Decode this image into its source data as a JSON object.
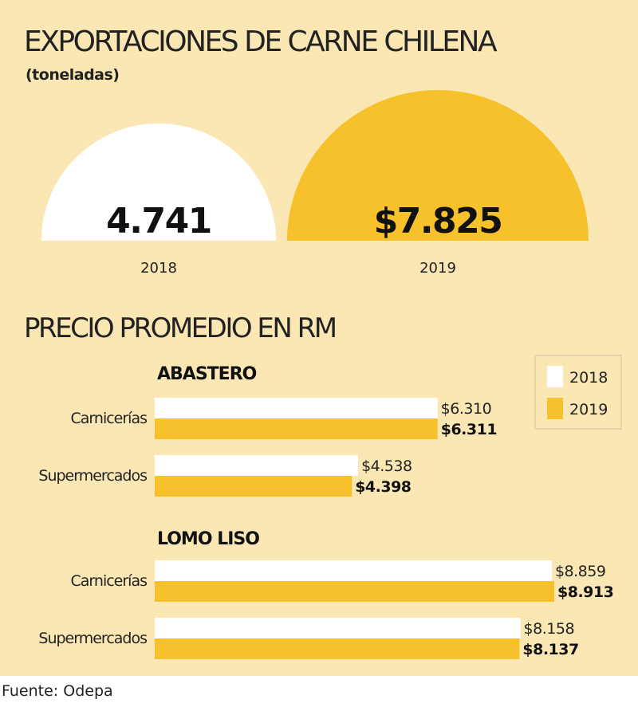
{
  "title": "EXPORTACIONES DE CARNE CHILENA",
  "subtitle": "(toneladas)",
  "section_title": "PRECIO PROMEDIO EN RM",
  "source": "Fuente: Odepa",
  "colors": {
    "background": "#fbe7b4",
    "series_2018": "#ffffff",
    "series_2019": "#f6c12a",
    "text": "#222222"
  },
  "chart_data": [
    {
      "type": "semicircle",
      "title": "EXPORTACIONES DE CARNE CHILENA",
      "subtitle": "(toneladas)",
      "categories": [
        "2018",
        "2019"
      ],
      "values": [
        4741,
        7825
      ],
      "value_labels": [
        "4.741",
        "$7.825"
      ]
    },
    {
      "type": "bar",
      "orientation": "horizontal",
      "title": "PRECIO PROMEDIO EN RM",
      "legend": {
        "position": "top-right",
        "entries": [
          "2018",
          "2019"
        ]
      },
      "series": [
        {
          "name": "2018"
        },
        {
          "name": "2019"
        }
      ],
      "groups": [
        {
          "name": "ABASTERO",
          "categories": [
            "Carnicerías",
            "Supermercados"
          ],
          "values_2018": [
            6310,
            4538
          ],
          "values_2019": [
            6311,
            4398
          ],
          "labels_2018": [
            "$6.310",
            "$4.538"
          ],
          "labels_2019": [
            "$6.311",
            "$4.398"
          ]
        },
        {
          "name": "LOMO LISO",
          "categories": [
            "Carnicerías",
            "Supermercados"
          ],
          "values_2018": [
            8859,
            8158
          ],
          "values_2019": [
            8913,
            8137
          ],
          "labels_2018": [
            "$8.859",
            "$8.158"
          ],
          "labels_2019": [
            "$8.913",
            "$8.137"
          ]
        }
      ],
      "xlim": [
        0,
        9400
      ]
    }
  ]
}
